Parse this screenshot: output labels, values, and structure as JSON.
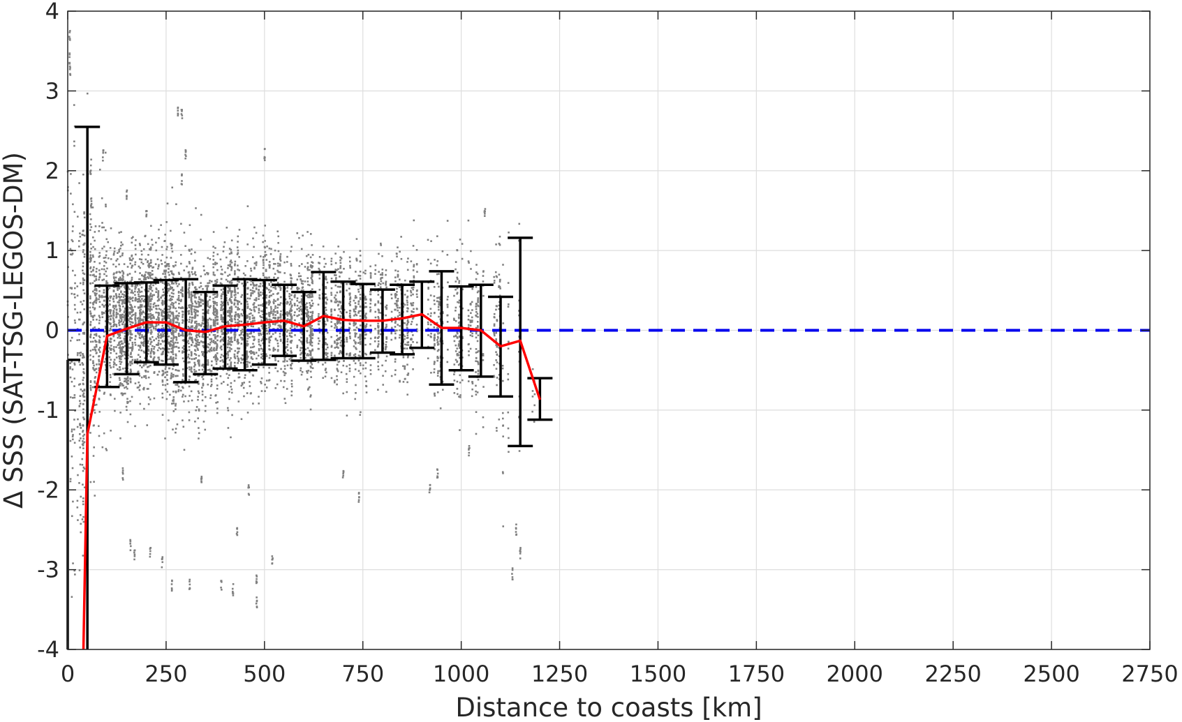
{
  "chart_data": {
    "type": "scatter",
    "title": "",
    "xlabel": "Distance to coasts [km]",
    "ylabel": "Δ SSS (SAT-TSG-LEGOS-DM)",
    "xlim": [
      0,
      2750
    ],
    "ylim": [
      -4,
      4
    ],
    "grid": true,
    "x_ticks": [
      0,
      250,
      500,
      750,
      1000,
      1250,
      1500,
      1750,
      2000,
      2250,
      2500,
      2750
    ],
    "y_ticks": [
      -4,
      -3,
      -2,
      -1,
      0,
      1,
      2,
      3,
      4
    ],
    "x_tick_labels": [
      "0",
      "250",
      "500",
      "750",
      "1000",
      "1250",
      "1500",
      "1750",
      "2000",
      "2250",
      "2500",
      "2750"
    ],
    "y_tick_labels": [
      "-4",
      "-3",
      "-2",
      "-1",
      "0",
      "1",
      "2",
      "3",
      "4"
    ],
    "colors": {
      "scatter": "#808080",
      "mean_line": "#ff0000",
      "zero_line": "#0000ee",
      "error_bars": "#000000",
      "grid": "#dedede",
      "axes": "#262626"
    },
    "reference_line": {
      "y": 0,
      "style": "dashed"
    },
    "binned_stats": [
      {
        "x": 0,
        "mean": null,
        "low": -4.0,
        "high": -0.37
      },
      {
        "x": 50,
        "mean": -1.3,
        "low": -4.0,
        "high": 2.55
      },
      {
        "x": 100,
        "mean": -0.07,
        "low": -0.71,
        "high": 0.56
      },
      {
        "x": 150,
        "mean": 0.02,
        "low": -0.55,
        "high": 0.59
      },
      {
        "x": 200,
        "mean": 0.1,
        "low": -0.4,
        "high": 0.6
      },
      {
        "x": 250,
        "mean": 0.1,
        "low": -0.43,
        "high": 0.63
      },
      {
        "x": 300,
        "mean": 0.0,
        "low": -0.65,
        "high": 0.64
      },
      {
        "x": 350,
        "mean": -0.02,
        "low": -0.55,
        "high": 0.48
      },
      {
        "x": 400,
        "mean": 0.05,
        "low": -0.48,
        "high": 0.56
      },
      {
        "x": 450,
        "mean": 0.07,
        "low": -0.5,
        "high": 0.64
      },
      {
        "x": 500,
        "mean": 0.1,
        "low": -0.43,
        "high": 0.63
      },
      {
        "x": 550,
        "mean": 0.12,
        "low": -0.32,
        "high": 0.57
      },
      {
        "x": 600,
        "mean": 0.05,
        "low": -0.38,
        "high": 0.48
      },
      {
        "x": 650,
        "mean": 0.18,
        "low": -0.37,
        "high": 0.73
      },
      {
        "x": 700,
        "mean": 0.13,
        "low": -0.35,
        "high": 0.61
      },
      {
        "x": 750,
        "mean": 0.12,
        "low": -0.35,
        "high": 0.58
      },
      {
        "x": 800,
        "mean": 0.12,
        "low": -0.28,
        "high": 0.51
      },
      {
        "x": 850,
        "mean": 0.15,
        "low": -0.3,
        "high": 0.57
      },
      {
        "x": 900,
        "mean": 0.2,
        "low": -0.22,
        "high": 0.61
      },
      {
        "x": 950,
        "mean": 0.03,
        "low": -0.68,
        "high": 0.74
      },
      {
        "x": 1000,
        "mean": 0.03,
        "low": -0.5,
        "high": 0.55
      },
      {
        "x": 1050,
        "mean": 0.0,
        "low": -0.58,
        "high": 0.57
      },
      {
        "x": 1100,
        "mean": -0.2,
        "low": -0.83,
        "high": 0.42
      },
      {
        "x": 1150,
        "mean": -0.13,
        "low": -1.45,
        "high": 1.16
      },
      {
        "x": 1200,
        "mean": -0.87,
        "low": -1.12,
        "high": -0.6
      }
    ],
    "mean_line_x": [
      40,
      50,
      100,
      150,
      200,
      250,
      300,
      350,
      400,
      450,
      500,
      550,
      600,
      650,
      700,
      750,
      800,
      850,
      900,
      950,
      1000,
      1050,
      1100,
      1150,
      1200
    ],
    "mean_line_y": [
      -4.0,
      -1.3,
      -0.07,
      0.02,
      0.1,
      0.1,
      0.0,
      -0.02,
      0.05,
      0.07,
      0.1,
      0.12,
      0.05,
      0.18,
      0.13,
      0.12,
      0.12,
      0.15,
      0.2,
      0.03,
      0.03,
      0.0,
      -0.2,
      -0.13,
      -0.87
    ],
    "scatter_bins": [
      {
        "x0": 0,
        "x1": 50,
        "mu": -0.3,
        "sd": 1.3,
        "n": 260
      },
      {
        "x0": 50,
        "x1": 100,
        "mu": 0.1,
        "sd": 0.75,
        "n": 320
      },
      {
        "x0": 100,
        "x1": 150,
        "mu": 0.05,
        "sd": 0.5,
        "n": 420
      },
      {
        "x0": 150,
        "x1": 200,
        "mu": 0.08,
        "sd": 0.48,
        "n": 450
      },
      {
        "x0": 200,
        "x1": 250,
        "mu": 0.1,
        "sd": 0.5,
        "n": 450
      },
      {
        "x0": 250,
        "x1": 300,
        "mu": 0.05,
        "sd": 0.55,
        "n": 430
      },
      {
        "x0": 300,
        "x1": 350,
        "mu": 0.0,
        "sd": 0.5,
        "n": 380
      },
      {
        "x0": 350,
        "x1": 400,
        "mu": 0.05,
        "sd": 0.45,
        "n": 360
      },
      {
        "x0": 400,
        "x1": 450,
        "mu": 0.08,
        "sd": 0.5,
        "n": 340
      },
      {
        "x0": 450,
        "x1": 500,
        "mu": 0.1,
        "sd": 0.5,
        "n": 330
      },
      {
        "x0": 500,
        "x1": 550,
        "mu": 0.12,
        "sd": 0.45,
        "n": 300
      },
      {
        "x0": 550,
        "x1": 600,
        "mu": 0.1,
        "sd": 0.42,
        "n": 260
      },
      {
        "x0": 600,
        "x1": 650,
        "mu": 0.15,
        "sd": 0.45,
        "n": 250
      },
      {
        "x0": 650,
        "x1": 700,
        "mu": 0.15,
        "sd": 0.45,
        "n": 230
      },
      {
        "x0": 700,
        "x1": 750,
        "mu": 0.12,
        "sd": 0.45,
        "n": 200
      },
      {
        "x0": 750,
        "x1": 800,
        "mu": 0.12,
        "sd": 0.4,
        "n": 170
      },
      {
        "x0": 800,
        "x1": 850,
        "mu": 0.15,
        "sd": 0.42,
        "n": 150
      },
      {
        "x0": 850,
        "x1": 900,
        "mu": 0.15,
        "sd": 0.45,
        "n": 140
      },
      {
        "x0": 900,
        "x1": 950,
        "mu": 0.1,
        "sd": 0.5,
        "n": 130
      },
      {
        "x0": 950,
        "x1": 1000,
        "mu": 0.0,
        "sd": 0.55,
        "n": 120
      },
      {
        "x0": 1000,
        "x1": 1050,
        "mu": 0.02,
        "sd": 0.5,
        "n": 110
      },
      {
        "x0": 1050,
        "x1": 1100,
        "mu": -0.1,
        "sd": 0.6,
        "n": 90
      },
      {
        "x0": 1100,
        "x1": 1150,
        "mu": -0.3,
        "sd": 0.8,
        "n": 40
      },
      {
        "x0": 1150,
        "x1": 1200,
        "mu": -0.8,
        "sd": 0.3,
        "n": 8
      }
    ],
    "scatter_outliers": [
      [
        5,
        3.7
      ],
      [
        5,
        3.4
      ],
      [
        6,
        3.25
      ],
      [
        58,
        2.0
      ],
      [
        90,
        2.2
      ],
      [
        150,
        1.7
      ],
      [
        200,
        1.5
      ],
      [
        280,
        2.75
      ],
      [
        290,
        2.7
      ],
      [
        300,
        2.2
      ],
      [
        290,
        1.9
      ],
      [
        500,
        2.2
      ],
      [
        210,
        -2.8
      ],
      [
        160,
        -2.7
      ],
      [
        170,
        -2.8
      ],
      [
        240,
        -2.9
      ],
      [
        265,
        -3.2
      ],
      [
        310,
        -3.2
      ],
      [
        390,
        -3.2
      ],
      [
        420,
        -3.25
      ],
      [
        480,
        -3.1
      ],
      [
        520,
        -2.9
      ],
      [
        480,
        -3.4
      ],
      [
        430,
        -2.5
      ],
      [
        460,
        -2.0
      ],
      [
        340,
        -1.9
      ],
      [
        1150,
        -2.8
      ],
      [
        1130,
        -3.05
      ],
      [
        1140,
        -2.5
      ],
      [
        920,
        -2.0
      ],
      [
        940,
        -1.8
      ],
      [
        1020,
        -1.5
      ],
      [
        1060,
        1.5
      ],
      [
        700,
        -1.8
      ],
      [
        740,
        -2.1
      ],
      [
        140,
        -1.8
      ],
      [
        60,
        1.6
      ]
    ]
  }
}
